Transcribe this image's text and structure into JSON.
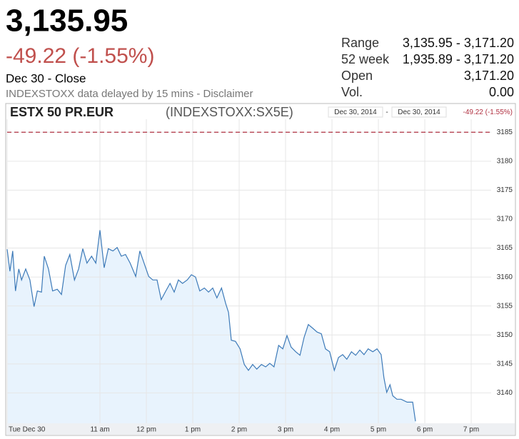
{
  "header": {
    "price": "3,135.95",
    "change": "-49.22 (-1.55%)",
    "status": "Dec 30 - Close",
    "disclaimer": "INDEXSTOXX data delayed by 15 mins - Disclaimer"
  },
  "stats": [
    {
      "label": "Range",
      "value": "3,135.95 - 3,171.20"
    },
    {
      "label": "52 week",
      "value": "1,935.89 - 3,171.20"
    },
    {
      "label": "Open",
      "value": "3,171.20"
    },
    {
      "label": "Vol.",
      "value": "0.00"
    }
  ],
  "chart_data": {
    "type": "line",
    "title": "ESTX 50 PR.EUR",
    "subtitle": "(INDEXSTOXX:SX5E)",
    "date_from": "Dec 30, 2014",
    "date_sep": "-",
    "date_to": "Dec 30, 2014",
    "period_change": "-49.22 (-1.55%)",
    "x": [
      9.0,
      9.06,
      9.12,
      9.18,
      9.25,
      9.31,
      9.4,
      9.49,
      9.58,
      9.65,
      9.74,
      9.8,
      9.89,
      9.98,
      10.08,
      10.17,
      10.26,
      10.35,
      10.45,
      10.54,
      10.63,
      10.72,
      10.82,
      10.91,
      11.0,
      11.09,
      11.18,
      11.28,
      11.37,
      11.46,
      11.55,
      11.65,
      11.77,
      11.86,
      11.95,
      12.05,
      12.14,
      12.23,
      12.32,
      12.42,
      12.51,
      12.6,
      12.69,
      12.78,
      12.88,
      12.97,
      13.06,
      13.15,
      13.25,
      13.34,
      13.43,
      13.52,
      13.62,
      13.71,
      13.77,
      13.83,
      13.92,
      14.02,
      14.11,
      14.2,
      14.29,
      14.38,
      14.48,
      14.57,
      14.66,
      14.75,
      14.85,
      14.94,
      15.03,
      15.12,
      15.22,
      15.31,
      15.4,
      15.49,
      15.58,
      15.68,
      15.77,
      15.86,
      15.95,
      16.05,
      16.14,
      16.23,
      16.32,
      16.42,
      16.51,
      16.6,
      16.69,
      16.78,
      16.88,
      16.97,
      17.06,
      17.12,
      17.18,
      17.25,
      17.31,
      17.4,
      17.49,
      17.62,
      17.74,
      17.8
    ],
    "series": [
      {
        "name": "ESTX 50 PR.EUR",
        "color": "#3d7ab8",
        "fill": "#e8f3fd",
        "values": [
          3164.8,
          3161.0,
          3164.5,
          3157.6,
          3161.4,
          3159.5,
          3161.4,
          3159.5,
          3154.9,
          3157.6,
          3157.4,
          3163.6,
          3161.4,
          3157.6,
          3157.9,
          3157.0,
          3162.0,
          3163.9,
          3159.5,
          3161.4,
          3164.9,
          3162.4,
          3163.6,
          3162.4,
          3168.1,
          3161.6,
          3164.9,
          3164.5,
          3165.1,
          3163.6,
          3163.9,
          3162.4,
          3160.1,
          3164.5,
          3162.4,
          3160.1,
          3159.5,
          3159.5,
          3156.1,
          3157.6,
          3158.9,
          3157.4,
          3159.5,
          3158.9,
          3159.5,
          3160.4,
          3160.0,
          3157.6,
          3158.1,
          3157.4,
          3158.1,
          3156.4,
          3158.1,
          3155.4,
          3153.9,
          3149.1,
          3148.9,
          3147.6,
          3144.9,
          3143.9,
          3144.9,
          3144.1,
          3144.9,
          3144.5,
          3145.1,
          3144.5,
          3148.2,
          3147.6,
          3149.9,
          3147.9,
          3147.1,
          3146.5,
          3149.6,
          3151.8,
          3151.2,
          3150.5,
          3150.2,
          3147.6,
          3147.1,
          3143.9,
          3146.1,
          3146.6,
          3145.8,
          3147.1,
          3146.5,
          3147.4,
          3146.6,
          3147.6,
          3147.1,
          3147.6,
          3146.6,
          3142.6,
          3140.1,
          3141.4,
          3139.5,
          3138.9,
          3138.9,
          3138.4,
          3138.4,
          3135.1
        ]
      }
    ],
    "reference_line": {
      "value": 3185,
      "color": "#b03040"
    },
    "xlim": [
      9,
      19.43
    ],
    "ylim": [
      3134.75,
      3187.25
    ],
    "xticks": [
      {
        "value": 9,
        "label": "Tue Dec 30"
      },
      {
        "value": 11,
        "label": "11 am"
      },
      {
        "value": 12,
        "label": "12 pm"
      },
      {
        "value": 13,
        "label": "1 pm"
      },
      {
        "value": 14,
        "label": "2 pm"
      },
      {
        "value": 15,
        "label": "3 pm"
      },
      {
        "value": 16,
        "label": "4 pm"
      },
      {
        "value": 17,
        "label": "5 pm"
      },
      {
        "value": 18,
        "label": "6 pm"
      },
      {
        "value": 19,
        "label": "7 pm"
      }
    ],
    "yticks": [
      3140,
      3145,
      3150,
      3155,
      3160,
      3165,
      3170,
      3175,
      3180,
      3185
    ],
    "grid": true
  }
}
